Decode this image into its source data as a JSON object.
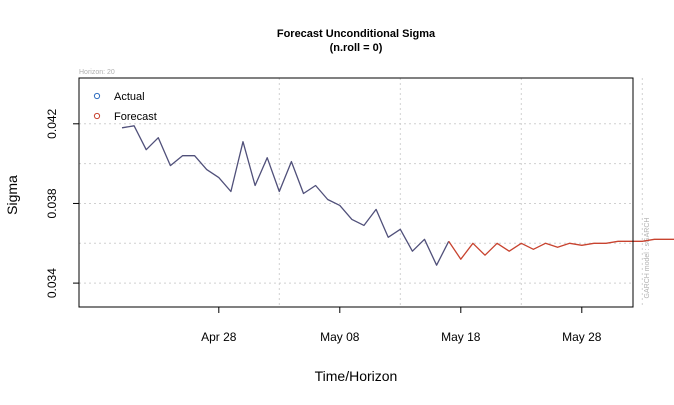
{
  "chart_data": {
    "type": "line",
    "title": "Forecast Unconditional Sigma",
    "subtitle": "(n.roll = 0)",
    "xlabel": "Time/Horizon",
    "ylabel": "Sigma",
    "top_left_note": "Horizon: 20",
    "side_note": "GARCH model : sGARCH",
    "x_ticks": [
      "Apr 28",
      "May 08",
      "May 18",
      "May 28"
    ],
    "y_ticks": [
      "0.034",
      "0.038",
      "0.042"
    ],
    "ylim": [
      0.0328,
      0.0443
    ],
    "grid": true,
    "legend_position": "top-left",
    "series": [
      {
        "name": "Actual",
        "color": "#50507a",
        "x": [
          "Apr 20",
          "Apr 21",
          "Apr 22",
          "Apr 23",
          "Apr 24",
          "Apr 25",
          "Apr 26",
          "Apr 27",
          "Apr 28",
          "Apr 29",
          "Apr 30",
          "May 01",
          "May 02",
          "May 03",
          "May 04",
          "May 05",
          "May 06",
          "May 07",
          "May 08",
          "May 09",
          "May 10",
          "May 11",
          "May 12",
          "May 13",
          "May 14",
          "May 15",
          "May 16",
          "May 17"
        ],
        "values": [
          0.0418,
          0.0419,
          0.0407,
          0.0413,
          0.0399,
          0.0404,
          0.0404,
          0.0397,
          0.0393,
          0.0386,
          0.0411,
          0.0389,
          0.0403,
          0.0386,
          0.0401,
          0.0385,
          0.0389,
          0.0382,
          0.0379,
          0.0372,
          0.0369,
          0.0377,
          0.0363,
          0.0367,
          0.0356,
          0.0362,
          0.0349,
          0.0361
        ]
      },
      {
        "name": "Forecast",
        "color": "#c8432f",
        "x": [
          "May 17",
          "May 18",
          "May 19",
          "May 20",
          "May 21",
          "May 22",
          "May 23",
          "May 24",
          "May 25",
          "May 26",
          "May 27",
          "May 28",
          "May 29",
          "May 30",
          "May 31",
          "Jun 01",
          "Jun 02",
          "Jun 03",
          "Jun 04",
          "Jun 05",
          "Jun 06"
        ],
        "values": [
          0.0361,
          0.0352,
          0.036,
          0.0354,
          0.036,
          0.0356,
          0.036,
          0.0357,
          0.036,
          0.0358,
          0.036,
          0.0359,
          0.036,
          0.036,
          0.0361,
          0.0361,
          0.0361,
          0.0362,
          0.0362,
          0.0362,
          0.0363
        ]
      }
    ]
  }
}
